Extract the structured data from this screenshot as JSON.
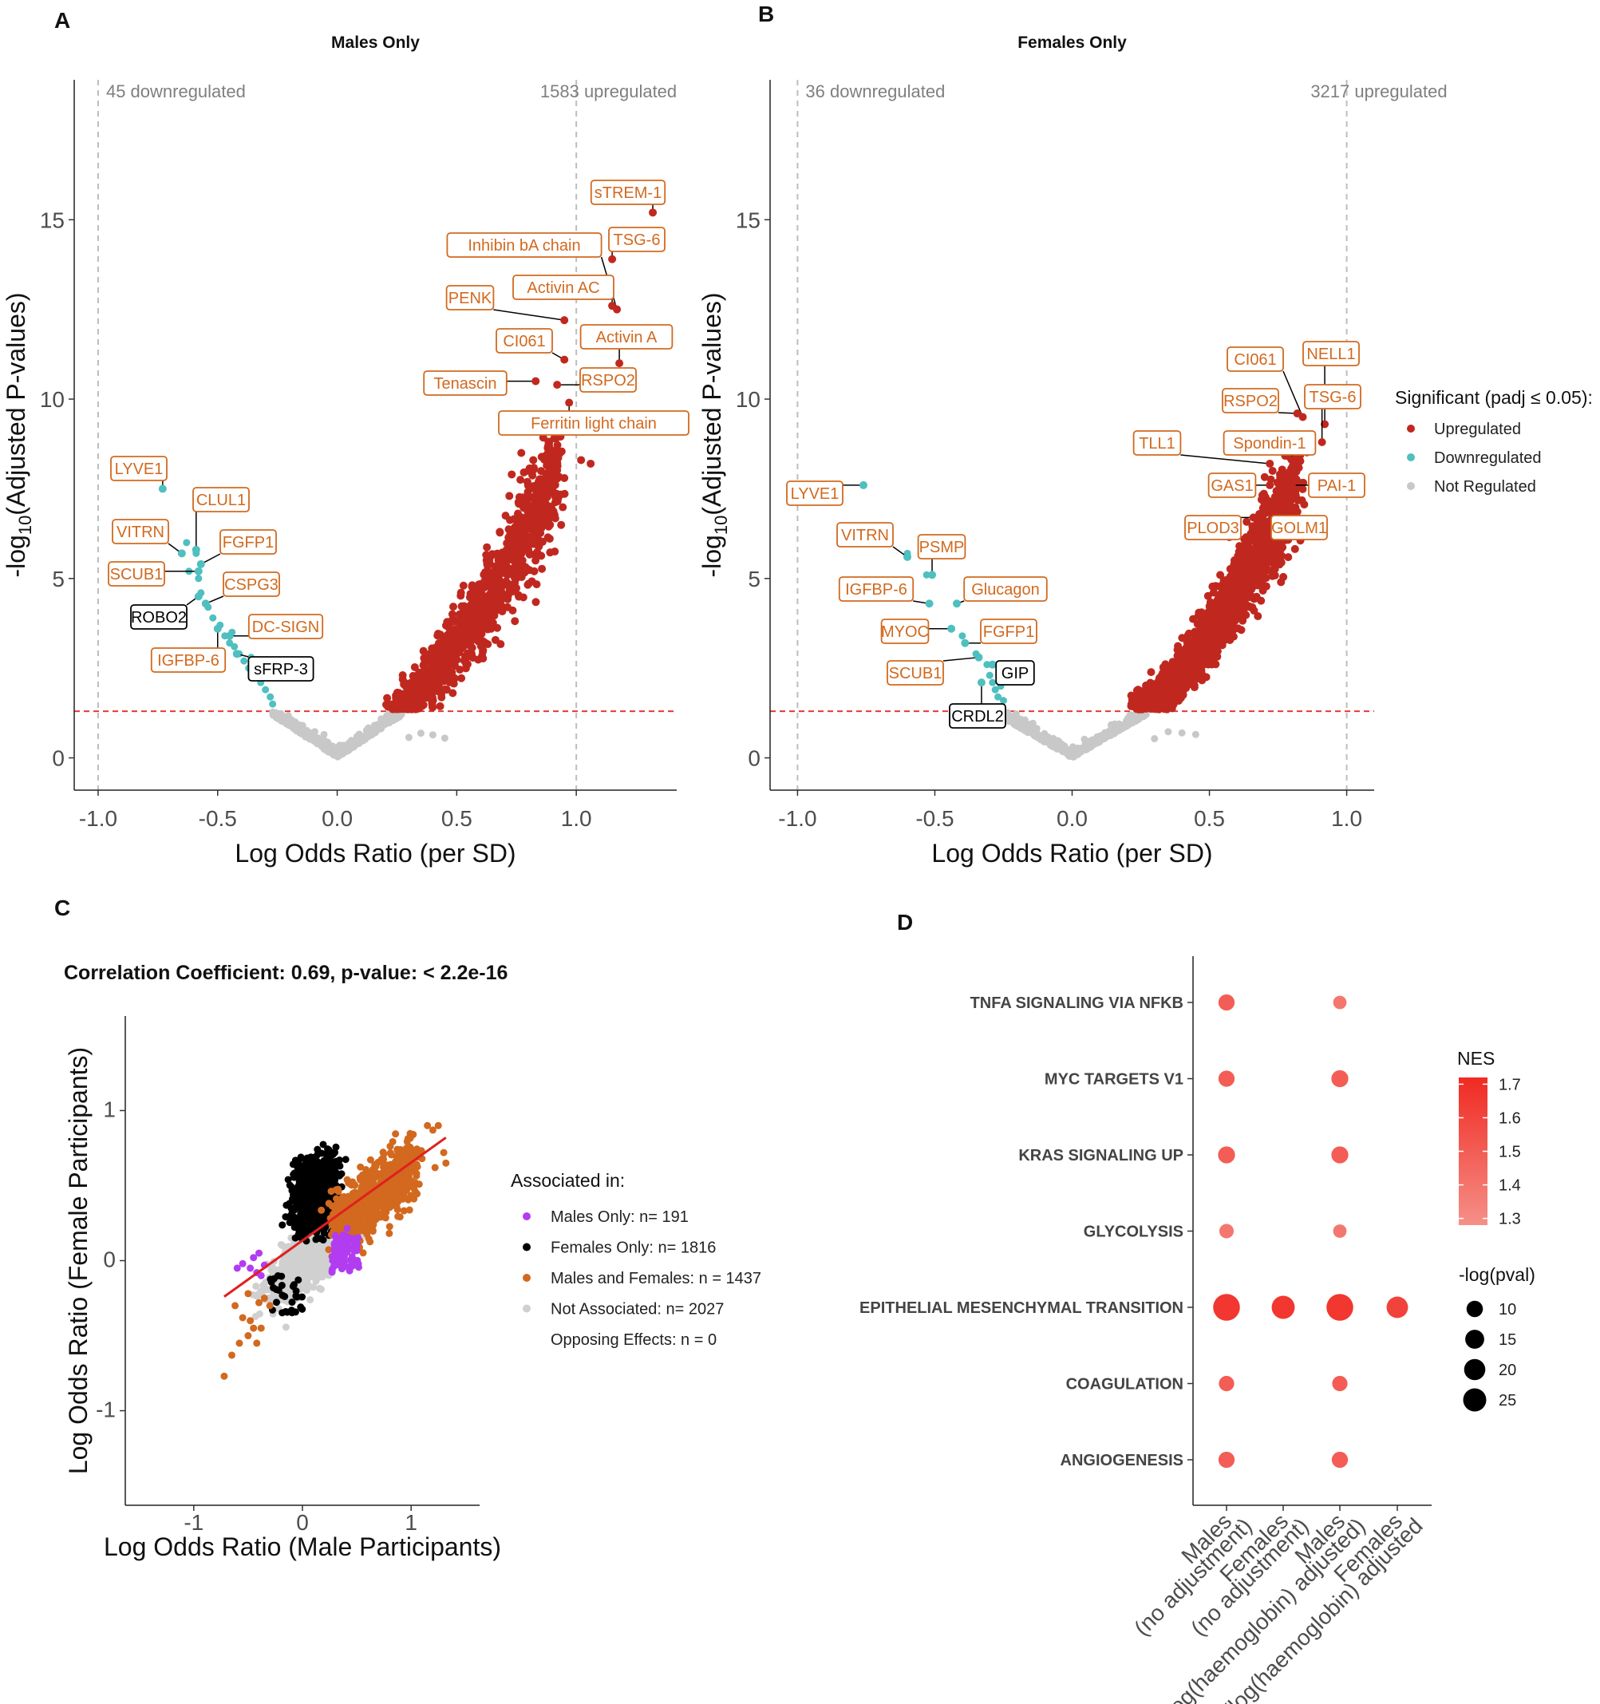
{
  "panel_letters": {
    "A": "A",
    "B": "B",
    "C": "C",
    "D": "D"
  },
  "colors": {
    "upregulated": "#c0281f",
    "downregulated": "#4fbfbf",
    "not_regulated": "#c8c8c8",
    "males_only": "#b23cf0",
    "females_only": "#000000",
    "males_and_females": "#d2691e",
    "not_associated": "#d0d0d0",
    "label_orange": "#d2691e",
    "threshold": "#e53935",
    "nes_high": "#f02a22",
    "nes_low": "#f59088"
  },
  "legend_sig": {
    "title": "Significant (padj ≤ 0.05):",
    "items": [
      "Upregulated",
      "Downregulated",
      "Not Regulated"
    ]
  },
  "legend_assoc": {
    "title": "Associated in:",
    "items": [
      "Males Only: n= 191",
      "Females Only: n= 1816",
      "Males and Females: n = 1437",
      "Not Associated: n= 2027",
      "Opposing Effects: n = 0"
    ]
  },
  "legend_nes": {
    "title": "NES",
    "ticks": [
      1.7,
      1.6,
      1.5,
      1.4,
      1.3
    ],
    "size_title": "-log(pval)",
    "sizes": [
      10,
      15,
      20,
      25
    ]
  },
  "chart_data": [
    {
      "type": "scatter",
      "panel": "A",
      "title": "Males Only",
      "xlabel": "Log Odds Ratio (per SD)",
      "ylabel": "-log10(Adjusted P-values)",
      "xlim": [
        -1.1,
        1.42
      ],
      "ylim": [
        -0.9,
        18.9
      ],
      "xticks": [
        -1.0,
        -0.5,
        0.0,
        0.5,
        1.0
      ],
      "xtick_labels": [
        "-1.0",
        "-0.5",
        "0.0",
        "0.5",
        "1.0"
      ],
      "yticks": [
        0,
        5,
        10,
        15
      ],
      "vlines": [
        -1.0,
        1.0
      ],
      "hline": 1.3,
      "annotations": {
        "down": "45 downregulated",
        "up": "1583 upregulated"
      },
      "labels": [
        {
          "text": "sTREM-1",
          "x": 1.32,
          "y": 15.2,
          "type": "up"
        },
        {
          "text": "TSG-6",
          "x": 1.15,
          "y": 13.9,
          "type": "up"
        },
        {
          "text": "Inhibin bA chain",
          "x": 1.17,
          "y": 12.5,
          "type": "up"
        },
        {
          "text": "Activin AC",
          "x": 1.15,
          "y": 12.6,
          "type": "up"
        },
        {
          "text": "PENK",
          "x": 0.95,
          "y": 12.2,
          "type": "up"
        },
        {
          "text": "Activin A",
          "x": 1.18,
          "y": 11.0,
          "type": "up"
        },
        {
          "text": "CI061",
          "x": 0.95,
          "y": 11.1,
          "type": "up"
        },
        {
          "text": "RSPO2",
          "x": 0.92,
          "y": 10.4,
          "type": "up"
        },
        {
          "text": "Tenascin",
          "x": 0.83,
          "y": 10.5,
          "type": "up"
        },
        {
          "text": "Ferritin light chain",
          "x": 0.97,
          "y": 9.9,
          "type": "up"
        },
        {
          "text": "LYVE1",
          "x": -0.73,
          "y": 7.5,
          "type": "down"
        },
        {
          "text": "CLUL1",
          "x": -0.59,
          "y": 5.8,
          "type": "down"
        },
        {
          "text": "VITRN",
          "x": -0.65,
          "y": 5.7,
          "type": "down"
        },
        {
          "text": "FGFP1",
          "x": -0.57,
          "y": 5.4,
          "type": "down"
        },
        {
          "text": "SCUB1",
          "x": -0.58,
          "y": 5.2,
          "type": "down"
        },
        {
          "text": "CSPG3",
          "x": -0.55,
          "y": 4.3,
          "type": "down"
        },
        {
          "text": "ROBO2",
          "x": -0.58,
          "y": 4.5,
          "type": "down"
        },
        {
          "text": "DC-SIGN",
          "x": -0.45,
          "y": 3.4,
          "type": "down"
        },
        {
          "text": "IGFBP-6",
          "x": -0.5,
          "y": 3.6,
          "type": "down"
        },
        {
          "text": "sFRP-3",
          "x": -0.42,
          "y": 2.9,
          "type": "down"
        }
      ]
    },
    {
      "type": "scatter",
      "panel": "B",
      "title": "Females Only",
      "xlabel": "Log Odds Ratio (per SD)",
      "ylabel": "-log10(Adjusted P-values)",
      "xlim": [
        -1.1,
        1.1
      ],
      "ylim": [
        -0.9,
        18.9
      ],
      "xticks": [
        -1.0,
        -0.5,
        0.0,
        0.5,
        1.0
      ],
      "xtick_labels": [
        "-1.0",
        "-0.5",
        "0.0",
        "0.5",
        "1.0"
      ],
      "yticks": [
        0,
        5,
        10,
        15
      ],
      "vlines": [
        -1.0,
        1.0
      ],
      "hline": 1.3,
      "annotations": {
        "down": "36 downregulated",
        "up": "3217 upregulated"
      },
      "labels": [
        {
          "text": "CI061",
          "x": 0.84,
          "y": 9.5,
          "type": "up"
        },
        {
          "text": "NELL1",
          "x": 0.92,
          "y": 9.3,
          "type": "up"
        },
        {
          "text": "RSPO2",
          "x": 0.82,
          "y": 9.6,
          "type": "up"
        },
        {
          "text": "TSG-6",
          "x": 0.91,
          "y": 8.8,
          "type": "up"
        },
        {
          "text": "TLL1",
          "x": 0.72,
          "y": 8.2,
          "type": "up"
        },
        {
          "text": "Spondin-1",
          "x": 0.8,
          "y": 8.3,
          "type": "up"
        },
        {
          "text": "GAS1",
          "x": 0.72,
          "y": 7.6,
          "type": "up"
        },
        {
          "text": "PAI-1",
          "x": 0.8,
          "y": 7.6,
          "type": "up"
        },
        {
          "text": "PLOD3",
          "x": 0.66,
          "y": 6.7,
          "type": "up"
        },
        {
          "text": "GOLM1",
          "x": 0.73,
          "y": 6.6,
          "type": "up"
        },
        {
          "text": "LYVE1",
          "x": -0.76,
          "y": 7.6,
          "type": "down"
        },
        {
          "text": "VITRN",
          "x": -0.6,
          "y": 5.6,
          "type": "down"
        },
        {
          "text": "PSMP",
          "x": -0.51,
          "y": 5.1,
          "type": "down"
        },
        {
          "text": "IGFBP-6",
          "x": -0.52,
          "y": 4.3,
          "type": "down"
        },
        {
          "text": "Glucagon",
          "x": -0.42,
          "y": 4.3,
          "type": "down"
        },
        {
          "text": "MYOC",
          "x": -0.44,
          "y": 3.6,
          "type": "down"
        },
        {
          "text": "FGFP1",
          "x": -0.39,
          "y": 3.2,
          "type": "down"
        },
        {
          "text": "SCUB1",
          "x": -0.34,
          "y": 2.8,
          "type": "down"
        },
        {
          "text": "GIP",
          "x": -0.29,
          "y": 2.6,
          "type": "down"
        },
        {
          "text": "CRDL2",
          "x": -0.33,
          "y": 2.1,
          "type": "down"
        }
      ]
    },
    {
      "type": "scatter",
      "panel": "C",
      "title": "Correlation Coefficient: 0.69, p-value: < 2.2e-16",
      "xlabel": "Log Odds Ratio (Male Participants)",
      "ylabel": "Log Odds Ratio (Female Participants)",
      "xlim": [
        -1.63,
        1.63
      ],
      "ylim": [
        -1.63,
        1.63
      ],
      "xticks": [
        -1,
        0,
        1
      ],
      "yticks": [
        -1,
        0,
        1
      ],
      "fit_line": [
        [
          -0.72,
          -0.24
        ],
        [
          1.32,
          0.82
        ]
      ],
      "groups": [
        "Males Only",
        "Females Only",
        "Males and Females",
        "Not Associated"
      ]
    },
    {
      "type": "scatter",
      "panel": "D",
      "xcategories": [
        "Males\n(no adjustment)",
        "Females\n(no adjustment)",
        "Males\n(log(haemoglobin) adjusted)",
        "Females\n(log(haemoglobin) adjusted"
      ],
      "ycategories": [
        "TNFA SIGNALING VIA NFKB",
        "MYC TARGETS V1",
        "KRAS SIGNALING UP",
        "GLYCOLYSIS",
        "EPITHELIAL MESENCHYMAL TRANSITION",
        "COAGULATION",
        "ANGIOGENESIS"
      ],
      "points": [
        {
          "x": 0,
          "y": 0,
          "nes": 1.5,
          "neglogp": 7
        },
        {
          "x": 2,
          "y": 0,
          "nes": 1.4,
          "neglogp": 4
        },
        {
          "x": 0,
          "y": 1,
          "nes": 1.5,
          "neglogp": 7
        },
        {
          "x": 2,
          "y": 1,
          "nes": 1.5,
          "neglogp": 8
        },
        {
          "x": 0,
          "y": 2,
          "nes": 1.5,
          "neglogp": 8
        },
        {
          "x": 2,
          "y": 2,
          "nes": 1.5,
          "neglogp": 8
        },
        {
          "x": 0,
          "y": 3,
          "nes": 1.4,
          "neglogp": 5
        },
        {
          "x": 2,
          "y": 3,
          "nes": 1.4,
          "neglogp": 4
        },
        {
          "x": 0,
          "y": 4,
          "nes": 1.65,
          "neglogp": 26
        },
        {
          "x": 1,
          "y": 4,
          "nes": 1.65,
          "neglogp": 18
        },
        {
          "x": 2,
          "y": 4,
          "nes": 1.65,
          "neglogp": 26
        },
        {
          "x": 3,
          "y": 4,
          "nes": 1.6,
          "neglogp": 15
        },
        {
          "x": 0,
          "y": 5,
          "nes": 1.5,
          "neglogp": 6
        },
        {
          "x": 2,
          "y": 5,
          "nes": 1.5,
          "neglogp": 6
        },
        {
          "x": 0,
          "y": 6,
          "nes": 1.5,
          "neglogp": 7
        },
        {
          "x": 2,
          "y": 6,
          "nes": 1.5,
          "neglogp": 7
        }
      ]
    }
  ]
}
